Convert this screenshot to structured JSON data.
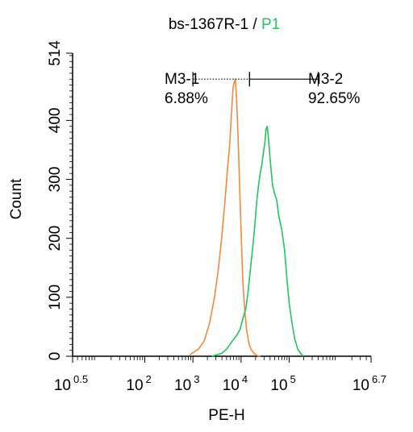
{
  "chart_data": {
    "type": "line",
    "title_main": "bs-1367R-1 / ",
    "title_highlight": "P1",
    "title_highlight_color": "#22c55e",
    "xlabel": "PE-H",
    "ylabel": "Count",
    "x_scale": "log",
    "xlim": [
      3.1623,
      5011872
    ],
    "ylim": [
      0,
      514
    ],
    "x_ticks": [
      {
        "value": 3.1623,
        "base": "10",
        "exp": "0.5"
      },
      {
        "value": 100,
        "base": "10",
        "exp": "2"
      },
      {
        "value": 1000,
        "base": "10",
        "exp": "3"
      },
      {
        "value": 10000,
        "base": "10",
        "exp": "4"
      },
      {
        "value": 100000,
        "base": "10",
        "exp": "5"
      },
      {
        "value": 5011872,
        "base": "10",
        "exp": "6.7"
      }
    ],
    "y_ticks": [
      0,
      100,
      200,
      300,
      400,
      514
    ],
    "series": [
      {
        "name": "bs-1367R-1",
        "color": "#f08a3c",
        "x": [
          850,
          1000,
          1300,
          1700,
          2200,
          2800,
          3400,
          4000,
          4600,
          5200,
          5800,
          6300,
          6800,
          7200,
          7600,
          8000,
          8400,
          8900,
          9500,
          10200,
          11000,
          12000,
          13000,
          14500,
          16000,
          18000,
          20000,
          22000,
          25000
        ],
        "values": [
          2,
          6,
          12,
          25,
          55,
          100,
          150,
          205,
          260,
          315,
          360,
          410,
          455,
          465,
          470,
          440,
          400,
          340,
          270,
          190,
          120,
          75,
          45,
          22,
          12,
          6,
          3,
          1,
          0
        ]
      },
      {
        "name": "P1",
        "color": "#22c55e",
        "x": [
          2500,
          3000,
          4000,
          5000,
          6500,
          8000,
          9500,
          11000,
          12500,
          14000,
          15500,
          17000,
          19000,
          21000,
          23000,
          25000,
          27000,
          29000,
          31000,
          33000,
          35000,
          37000,
          40000,
          45000,
          50000,
          55000,
          60000,
          70000,
          80000,
          90000,
          100000,
          115000,
          130000,
          150000,
          175000,
          200000
        ],
        "values": [
          0,
          2,
          5,
          12,
          25,
          35,
          45,
          65,
          80,
          110,
          145,
          175,
          215,
          260,
          290,
          310,
          325,
          345,
          360,
          385,
          390,
          370,
          335,
          290,
          275,
          265,
          240,
          215,
          180,
          130,
          90,
          55,
          30,
          12,
          4,
          0
        ]
      }
    ],
    "gates": [
      {
        "name": "M3-1",
        "percent": "6.88%",
        "x_range": [
          1000,
          15000
        ],
        "style": "dotted"
      },
      {
        "name": "M3-2",
        "percent": "92.65%",
        "x_range": [
          15000,
          400000
        ],
        "style": "solid"
      }
    ],
    "gate_y": 470,
    "grid": false
  }
}
